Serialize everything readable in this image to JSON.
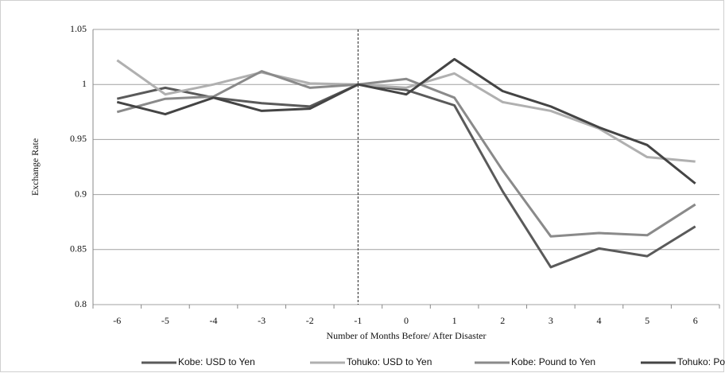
{
  "chart_data": {
    "type": "line",
    "y_label": "Exchange Rate",
    "x_label": "Number of Months Before/ After Disaster",
    "categories": [
      "-6",
      "-5",
      "-4",
      "-3",
      "-2",
      "-1",
      "0",
      "1",
      "2",
      "3",
      "4",
      "5",
      "6"
    ],
    "series": [
      {
        "name": "Kobe: USD to Yen",
        "color": "#5a5a5a",
        "values": [
          0.987,
          0.997,
          0.988,
          0.983,
          0.98,
          1.0,
          0.995,
          0.981,
          0.903,
          0.834,
          0.851,
          0.844,
          0.871
        ]
      },
      {
        "name": "Tohuko: USD to Yen",
        "color": "#b0b0b0",
        "values": [
          1.022,
          0.991,
          1.0,
          1.011,
          1.001,
          1.0,
          0.997,
          1.01,
          0.984,
          0.976,
          0.96,
          0.934,
          0.93
        ]
      },
      {
        "name": "Kobe: Pound to Yen",
        "color": "#8a8a8a",
        "values": [
          0.975,
          0.987,
          0.989,
          1.012,
          0.997,
          1.0,
          1.005,
          0.988,
          0.922,
          0.862,
          0.865,
          0.863,
          0.891
        ]
      },
      {
        "name": "Tohuko: Pound to Yen",
        "color": "#444444",
        "values": [
          0.984,
          0.973,
          0.988,
          0.976,
          0.978,
          1.0,
          0.991,
          1.023,
          0.994,
          0.98,
          0.961,
          0.945,
          0.91
        ]
      }
    ],
    "ylim": [
      0.8,
      1.05
    ],
    "yticks": [
      0.8,
      0.85,
      0.9,
      0.95,
      1,
      1.05
    ],
    "grid": true,
    "reference_line": {
      "category": "-1",
      "style": "dashed"
    },
    "legend": "bottom"
  }
}
